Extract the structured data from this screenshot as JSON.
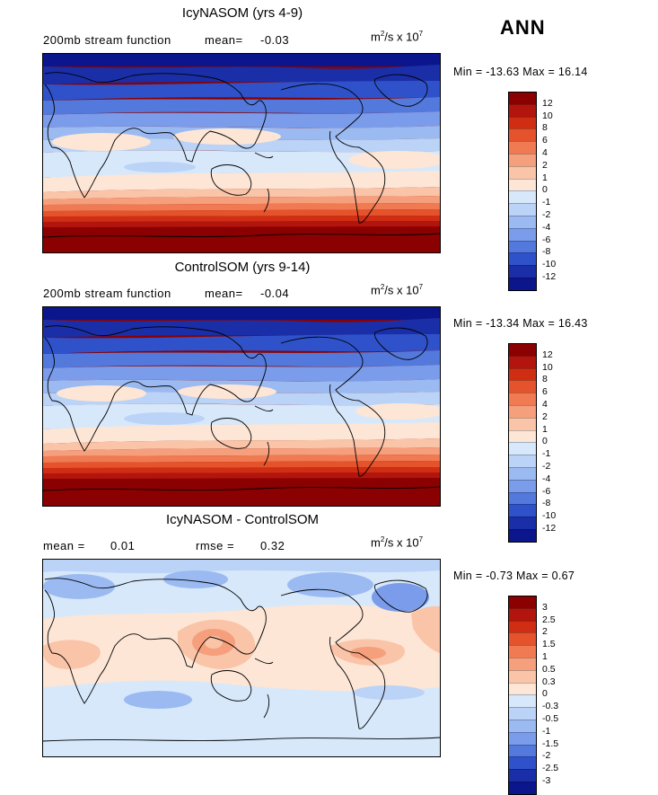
{
  "season": "ANN",
  "panels": [
    {
      "title": "IcyNASOM (yrs 4-9)",
      "left_label": "200mb stream function",
      "stat1_label": "mean=",
      "stat1_value": "-0.03",
      "stat2_label": "",
      "stat2_value": "",
      "units_base": "m",
      "units_sup1": "2",
      "units_mid": "/s x 10",
      "units_sup2": "7",
      "min_label": "Min =",
      "min_value": "-13.63",
      "max_label": "Max =",
      "max_value": "16.14",
      "levels": [
        "12",
        "10",
        "8",
        "6",
        "4",
        "2",
        "1",
        "0",
        "-1",
        "-2",
        "-4",
        "-6",
        "-8",
        "-10",
        "-12"
      ],
      "colors": [
        "#8b0000",
        "#b2150d",
        "#cf2e13",
        "#e4532b",
        "#f07a52",
        "#f69f7d",
        "#fac4a8",
        "#fde6d6",
        "#d7e8fb",
        "#bad3f6",
        "#9bbaf1",
        "#7a9cea",
        "#5479dd",
        "#2f52cb",
        "#1a2ea8",
        "#0c168c"
      ],
      "type": "full"
    },
    {
      "title": "ControlSOM (yrs 9-14)",
      "left_label": "200mb stream function",
      "stat1_label": "mean=",
      "stat1_value": "-0.04",
      "stat2_label": "",
      "stat2_value": "",
      "units_base": "m",
      "units_sup1": "2",
      "units_mid": "/s x 10",
      "units_sup2": "7",
      "min_label": "Min =",
      "min_value": "-13.34",
      "max_label": "Max =",
      "max_value": "16.43",
      "levels": [
        "12",
        "10",
        "8",
        "6",
        "4",
        "2",
        "1",
        "0",
        "-1",
        "-2",
        "-4",
        "-6",
        "-8",
        "-10",
        "-12"
      ],
      "colors": [
        "#8b0000",
        "#b2150d",
        "#cf2e13",
        "#e4532b",
        "#f07a52",
        "#f69f7d",
        "#fac4a8",
        "#fde6d6",
        "#d7e8fb",
        "#bad3f6",
        "#9bbaf1",
        "#7a9cea",
        "#5479dd",
        "#2f52cb",
        "#1a2ea8",
        "#0c168c"
      ],
      "type": "full"
    },
    {
      "title": "IcyNASOM - ControlSOM",
      "left_label": "",
      "stat1_label": "mean =",
      "stat1_value": "0.01",
      "stat2_label": "rmse =",
      "stat2_value": "0.32",
      "units_base": "m",
      "units_sup1": "2",
      "units_mid": "/s x 10",
      "units_sup2": "7",
      "min_label": "Min =",
      "min_value": "-0.73",
      "max_label": "Max =",
      "max_value": "0.67",
      "levels": [
        "3",
        "2.5",
        "2",
        "1.5",
        "1",
        "0.5",
        "0.3",
        "0",
        "-0.3",
        "-0.5",
        "-1",
        "-1.5",
        "-2",
        "-2.5",
        "-3"
      ],
      "colors": [
        "#8b0000",
        "#b2150d",
        "#cf2e13",
        "#e4532b",
        "#f07a52",
        "#f69f7d",
        "#fac4a8",
        "#fde6d6",
        "#d7e8fb",
        "#bad3f6",
        "#9bbaf1",
        "#7a9cea",
        "#5479dd",
        "#2f52cb",
        "#1a2ea8",
        "#0c168c"
      ],
      "type": "diff"
    }
  ]
}
